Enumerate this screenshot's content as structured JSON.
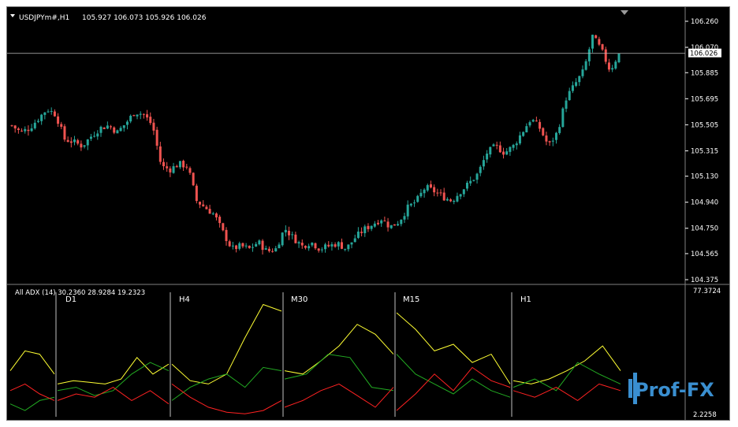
{
  "header": {
    "symbol": "USDJPYm#,H1",
    "ohlc": "105.927 106.073 105.926 106.026"
  },
  "price_axis": {
    "ticks": [
      "106.260",
      "106.070",
      "105.885",
      "105.695",
      "105.505",
      "105.315",
      "105.130",
      "104.940",
      "104.750",
      "104.565",
      "104.375"
    ],
    "current_price": "106.026"
  },
  "indicator": {
    "title": "All ADX (14) 30.2360 28.9284 19.2323",
    "axis_top": "77.3724",
    "axis_bottom": "2.2258",
    "timeframes": [
      "D1",
      "H4",
      "M30",
      "M15",
      "H1"
    ]
  },
  "colors": {
    "bull": "#26a69a",
    "bear": "#ef5350",
    "adx": "#ffff33",
    "plus_di": "#22aa22",
    "minus_di": "#ff2222",
    "separator": "#808080"
  },
  "logo": {
    "text": "Prof-FX"
  },
  "chart_data": [
    {
      "type": "candlestick",
      "title": "USDJPYm#,H1",
      "ylim": [
        104.375,
        106.26
      ],
      "close_path": [
        105.5,
        105.45,
        105.48,
        105.55,
        105.62,
        105.58,
        105.4,
        105.38,
        105.35,
        105.42,
        105.48,
        105.5,
        105.45,
        105.52,
        105.6,
        105.58,
        105.5,
        105.2,
        105.18,
        105.22,
        105.2,
        104.95,
        104.9,
        104.85,
        104.72,
        104.6,
        104.62,
        104.6,
        104.65,
        104.58,
        104.6,
        104.75,
        104.68,
        104.62,
        104.65,
        104.6,
        104.62,
        104.64,
        104.6,
        104.68,
        104.74,
        104.78,
        104.82,
        104.76,
        104.8,
        104.9,
        104.95,
        105.05,
        105.02,
        104.98,
        104.95,
        105.02,
        105.08,
        105.15,
        105.3,
        105.35,
        105.3,
        105.35,
        105.45,
        105.55,
        105.48,
        105.35,
        105.45,
        105.7,
        105.8,
        105.9,
        106.15,
        106.05,
        105.9,
        106.026
      ],
      "current": 106.026
    },
    {
      "type": "line",
      "title": "All ADX (14) 30.2360 28.9284 19.2323",
      "ylim": [
        2.2258,
        77.3724
      ],
      "categories": [
        "",
        "D1",
        "H4",
        "M30",
        "M15",
        "H1"
      ],
      "series": [
        {
          "name": "ADX",
          "values": [
            [
              30,
              42,
              40,
              28
            ],
            [
              22,
              24,
              23,
              22,
              25,
              38,
              28,
              34
            ],
            [
              34,
              24,
              22,
              28,
              50,
              70,
              66
            ],
            [
              30,
              28,
              36,
              45,
              58,
              52,
              40
            ],
            [
              65,
              55,
              42,
              46,
              35,
              40,
              22
            ],
            [
              24,
              22,
              25,
              30,
              36,
              45,
              30
            ]
          ]
        },
        {
          "name": "+DI",
          "values": [
            [
              10,
              6,
              12,
              14
            ],
            [
              18,
              20,
              15,
              18,
              28,
              35,
              30
            ],
            [
              12,
              20,
              25,
              28,
              20,
              32,
              30
            ],
            [
              25,
              28,
              40,
              38,
              20,
              18
            ],
            [
              40,
              28,
              22,
              16,
              25,
              18,
              14
            ],
            [
              20,
              25,
              18,
              35,
              28,
              22
            ]
          ]
        },
        {
          "name": "-DI",
          "values": [
            [
              18,
              22,
              16,
              12
            ],
            [
              12,
              16,
              14,
              20,
              12,
              18,
              10
            ],
            [
              22,
              14,
              8,
              5,
              4,
              6,
              12
            ],
            [
              8,
              12,
              18,
              22,
              15,
              8,
              20
            ],
            [
              6,
              16,
              28,
              18,
              32,
              24,
              20
            ],
            [
              18,
              14,
              20,
              12,
              22,
              18
            ]
          ]
        }
      ]
    }
  ]
}
